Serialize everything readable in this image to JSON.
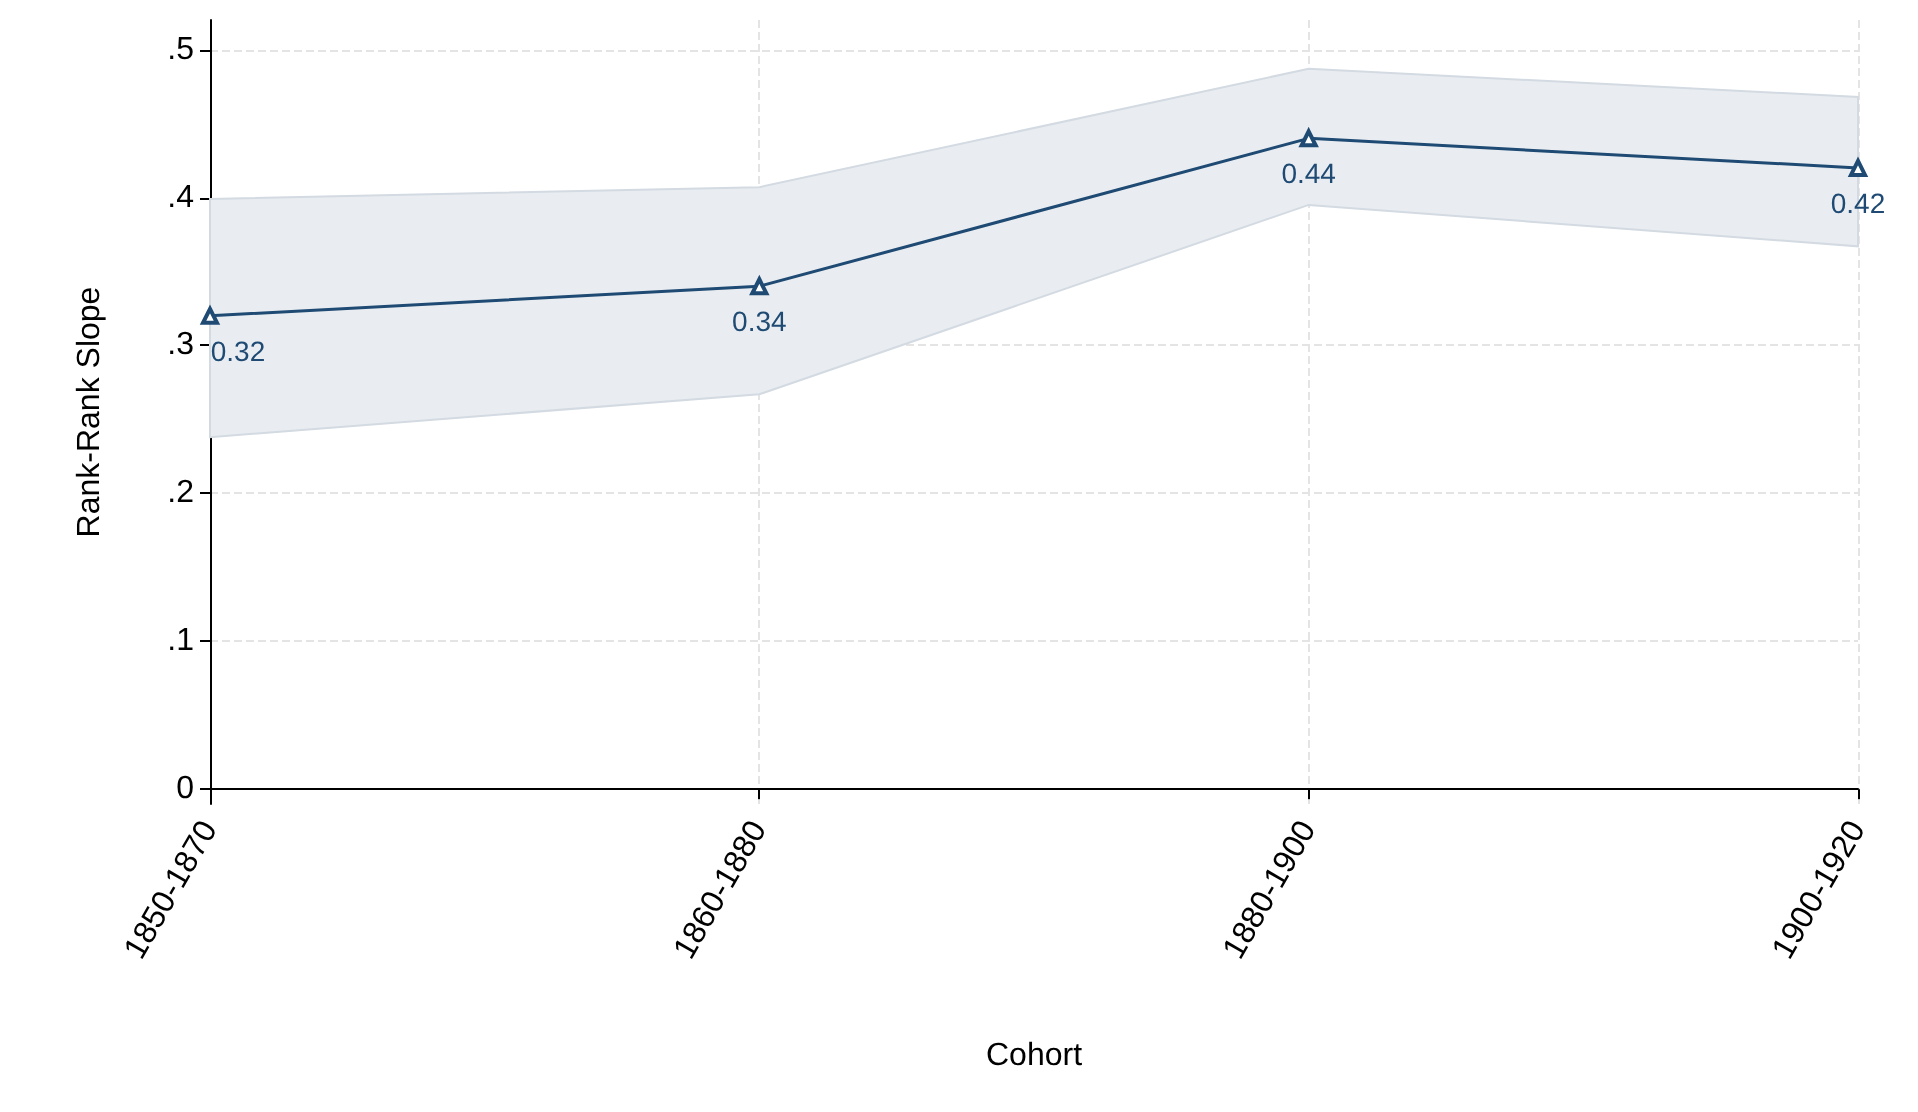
{
  "chart_data": {
    "type": "line",
    "xlabel": "Cohort",
    "ylabel": "Rank-Rank Slope",
    "categories": [
      "1850-1870",
      "1860-1880",
      "1880-1900",
      "1900-1920"
    ],
    "series": [
      {
        "color": "#1f4a73",
        "values": [
          0.32,
          0.34,
          0.44,
          0.42
        ],
        "lower": [
          0.238,
          0.267,
          0.395,
          0.367
        ],
        "upper": [
          0.399,
          0.407,
          0.487,
          0.468
        ]
      }
    ],
    "ylim": [
      -0.01,
      0.52
    ],
    "yticks": [
      {
        "value": 0,
        "label": "0"
      },
      {
        "value": 0.1,
        "label": ".1"
      },
      {
        "value": 0.2,
        "label": ".2"
      },
      {
        "value": 0.3,
        "label": ".3"
      },
      {
        "value": 0.4,
        "label": ".4"
      },
      {
        "value": 0.5,
        "label": ".5"
      }
    ],
    "grid": true,
    "marker": "triangle",
    "line_style": "solid",
    "data_labels": true
  }
}
